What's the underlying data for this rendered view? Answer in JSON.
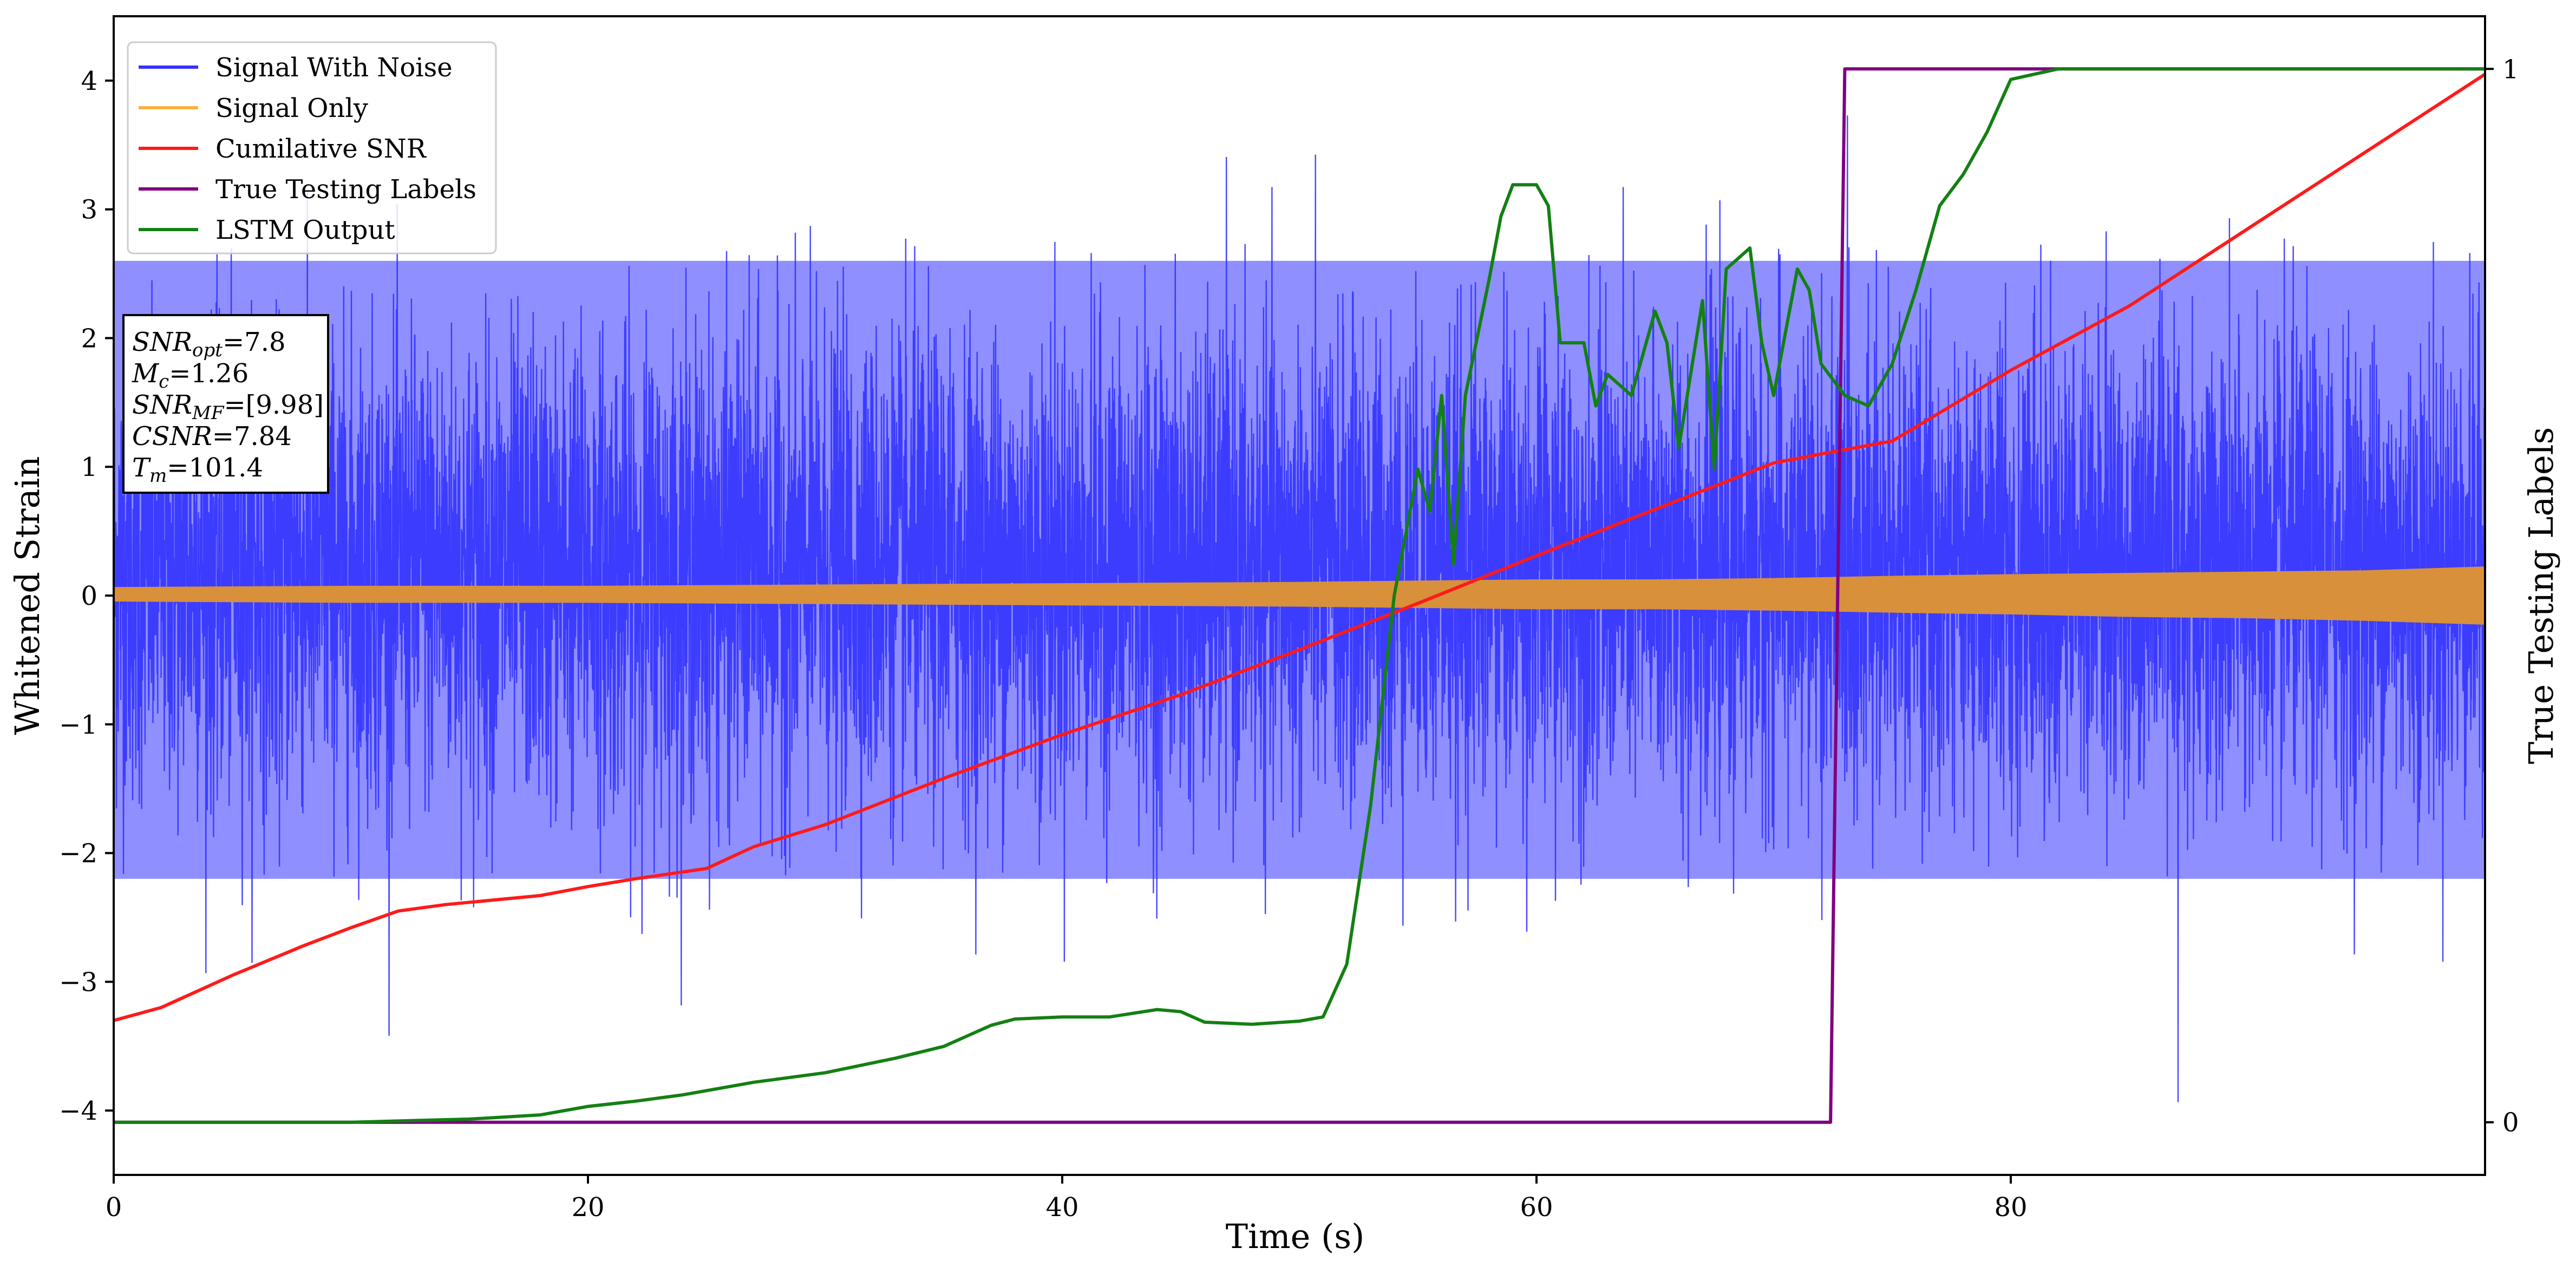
{
  "chart_data": {
    "type": "line",
    "title": "",
    "xlabel": "Time (s)",
    "ylabel": "Whitened Strain",
    "ylabel_right": "True Testing Labels",
    "xlim": [
      0,
      100
    ],
    "ylim": [
      -4.5,
      4.5
    ],
    "ylim_right": [
      -0.05,
      1.05
    ],
    "x_ticks": [
      0,
      20,
      40,
      60,
      80
    ],
    "y_ticks": [
      -4,
      -3,
      -2,
      -1,
      0,
      1,
      2,
      3,
      4
    ],
    "y_ticks_right": [
      0,
      1
    ],
    "grid": false,
    "legend_position": "top-left",
    "legend": [
      {
        "name": "Signal With Noise",
        "color": "#3333ff"
      },
      {
        "name": "Signal Only",
        "color": "#f5b342"
      },
      {
        "name": "Cumilative SNR",
        "color": "#ff1a1a"
      },
      {
        "name": "True Testing Labels",
        "color": "#800080"
      },
      {
        "name": "LSTM Output",
        "color": "#138013"
      }
    ],
    "annotation": [
      {
        "base": "SNR",
        "sub": "opt",
        "value": "=7.8"
      },
      {
        "base": "M",
        "sub": "c",
        "value": "=1.26"
      },
      {
        "base": "SNR",
        "sub": "MF",
        "value": "=[9.98]"
      },
      {
        "base": "CSNR",
        "sub": "",
        "value": "=7.84"
      },
      {
        "base": "T",
        "sub": "m",
        "value": "=101.4"
      }
    ],
    "series": [
      {
        "name": "Signal With Noise",
        "axis": "left",
        "style": "noise",
        "band_low": -2.2,
        "band_high": 2.6,
        "peak_max": 3.9,
        "peak_min": -4.1
      },
      {
        "name": "Signal Only",
        "axis": "left",
        "style": "envelope",
        "x": [
          0,
          10,
          20,
          30,
          40,
          50,
          55,
          60,
          65,
          70,
          73,
          76,
          80,
          85,
          90,
          95,
          100
        ],
        "upper": [
          0.06,
          0.07,
          0.07,
          0.08,
          0.09,
          0.1,
          0.11,
          0.12,
          0.12,
          0.13,
          0.14,
          0.15,
          0.16,
          0.17,
          0.18,
          0.19,
          0.22
        ],
        "lower": [
          -0.04,
          -0.05,
          -0.05,
          -0.06,
          -0.07,
          -0.08,
          -0.09,
          -0.1,
          -0.1,
          -0.11,
          -0.12,
          -0.13,
          -0.14,
          -0.16,
          -0.17,
          -0.19,
          -0.22
        ]
      },
      {
        "name": "Cumilative SNR",
        "axis": "left",
        "x": [
          0,
          2,
          5,
          8,
          10,
          12,
          14,
          18,
          20,
          22,
          25,
          27,
          30,
          35,
          40,
          45,
          50,
          55,
          60,
          65,
          70,
          72,
          75,
          80,
          85,
          90,
          95,
          100
        ],
        "y": [
          -3.3,
          -3.2,
          -2.95,
          -2.72,
          -2.58,
          -2.45,
          -2.4,
          -2.33,
          -2.26,
          -2.2,
          -2.12,
          -1.95,
          -1.78,
          -1.42,
          -1.08,
          -0.77,
          -0.42,
          -0.06,
          0.31,
          0.67,
          1.03,
          1.1,
          1.2,
          1.75,
          2.25,
          2.85,
          3.45,
          4.05
        ]
      },
      {
        "name": "True Testing Labels",
        "axis": "right",
        "x": [
          0,
          72.4,
          73.0,
          100
        ],
        "y": [
          0,
          0,
          1,
          1
        ]
      },
      {
        "name": "LSTM Output",
        "axis": "right",
        "x": [
          0,
          10,
          15,
          18,
          20,
          22,
          24,
          27,
          30,
          33,
          35,
          37,
          38,
          40,
          42,
          44,
          45,
          46,
          48,
          50,
          51,
          52,
          53,
          54,
          55,
          55.5,
          56,
          56.5,
          57,
          58,
          58.5,
          59,
          60,
          60.5,
          61,
          62,
          62.5,
          63,
          64,
          65,
          65.5,
          66,
          67,
          67.5,
          68,
          69,
          69.5,
          70,
          71,
          71.5,
          72,
          73,
          74,
          75,
          76,
          77,
          78,
          79,
          80,
          82,
          85,
          90,
          100
        ],
        "y": [
          0,
          0,
          0.003,
          0.007,
          0.015,
          0.02,
          0.026,
          0.038,
          0.047,
          0.061,
          0.072,
          0.092,
          0.098,
          0.1,
          0.1,
          0.107,
          0.105,
          0.095,
          0.093,
          0.096,
          0.1,
          0.15,
          0.3,
          0.5,
          0.62,
          0.58,
          0.69,
          0.53,
          0.69,
          0.8,
          0.86,
          0.89,
          0.89,
          0.87,
          0.74,
          0.74,
          0.68,
          0.71,
          0.69,
          0.77,
          0.74,
          0.64,
          0.78,
          0.62,
          0.81,
          0.83,
          0.74,
          0.69,
          0.81,
          0.79,
          0.72,
          0.69,
          0.68,
          0.72,
          0.79,
          0.87,
          0.9,
          0.94,
          0.99,
          1.0,
          1.0,
          1.0,
          1.0
        ]
      }
    ]
  }
}
